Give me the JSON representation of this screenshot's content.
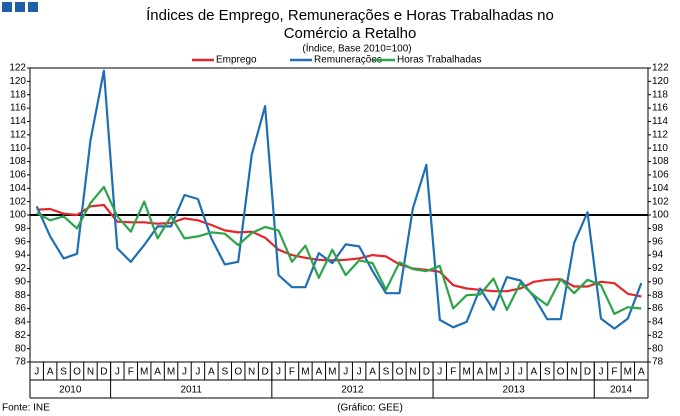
{
  "chart_data": {
    "type": "line",
    "title": [
      "Índices de Emprego, Remunerações e Horas Trabalhadas no",
      "Comércio a Retalho"
    ],
    "subtitle": "(Índice, Base 2010=100)",
    "source": "Fonte: INE",
    "credit": "(Gráfico: GEE)",
    "categories": [
      "J",
      "A",
      "S",
      "O",
      "N",
      "D",
      "J",
      "F",
      "M",
      "A",
      "M",
      "J",
      "J",
      "A",
      "S",
      "O",
      "N",
      "D",
      "J",
      "F",
      "M",
      "A",
      "M",
      "J",
      "J",
      "A",
      "S",
      "O",
      "N",
      "D",
      "J",
      "F",
      "M",
      "A",
      "M",
      "J",
      "J",
      "A",
      "S",
      "O",
      "N",
      "D",
      "J",
      "F",
      "M",
      "A"
    ],
    "groups": [
      {
        "label": "2010",
        "size": 6
      },
      {
        "label": "2011",
        "size": 12
      },
      {
        "label": "2012",
        "size": 12
      },
      {
        "label": "2013",
        "size": 12
      },
      {
        "label": "2014",
        "size": 4
      }
    ],
    "series": [
      {
        "name": "Emprego",
        "color": "#e3262b",
        "values": [
          100.8,
          100.9,
          100.2,
          100.0,
          101.3,
          101.5,
          99.0,
          98.9,
          98.9,
          98.7,
          98.8,
          99.5,
          99.2,
          98.5,
          97.7,
          97.4,
          97.5,
          96.6,
          94.8,
          94.0,
          93.6,
          93.3,
          93.2,
          93.3,
          93.5,
          94.0,
          93.8,
          92.6,
          92.0,
          91.8,
          91.5,
          89.5,
          89.0,
          88.8,
          88.6,
          88.6,
          89.0,
          90.0,
          90.3,
          90.4,
          89.3,
          89.3,
          90.0,
          89.8,
          88.2,
          87.8
        ]
      },
      {
        "name": "Remunerações",
        "color": "#1f6fb4",
        "values": [
          101.3,
          96.8,
          93.5,
          94.2,
          111.2,
          121.6,
          95.0,
          93.0,
          95.5,
          98.3,
          98.3,
          103.0,
          102.4,
          96.5,
          92.6,
          93.0,
          109.0,
          116.3,
          91.0,
          89.2,
          89.2,
          94.3,
          92.8,
          95.6,
          95.3,
          91.6,
          88.3,
          88.3,
          101.0,
          107.5,
          84.3,
          83.2,
          84.0,
          89.0,
          85.8,
          90.7,
          90.2,
          87.8,
          84.4,
          84.4,
          95.8,
          100.4,
          84.5,
          83.0,
          84.5,
          89.8
        ]
      },
      {
        "name": "Horas Trabalhadas",
        "color": "#2ca44a",
        "values": [
          100.3,
          99.2,
          99.8,
          98.0,
          101.8,
          104.2,
          99.8,
          97.5,
          102.0,
          96.5,
          99.8,
          96.5,
          96.8,
          97.4,
          97.2,
          95.5,
          97.3,
          98.2,
          97.7,
          93.0,
          95.4,
          90.6,
          94.8,
          91.0,
          93.2,
          92.8,
          88.8,
          92.9,
          91.9,
          91.6,
          92.4,
          86.0,
          88.0,
          88.1,
          90.5,
          85.8,
          89.8,
          88.0,
          86.5,
          90.4,
          88.3,
          90.3,
          89.5,
          85.2,
          86.2,
          86.0
        ]
      }
    ],
    "reference_line": 100,
    "ylim": [
      78,
      122
    ],
    "yticks": [
      78,
      80,
      82,
      84,
      86,
      88,
      90,
      92,
      94,
      96,
      98,
      100,
      102,
      104,
      106,
      108,
      110,
      112,
      114,
      116,
      118,
      120,
      122
    ],
    "y2lim": [
      78,
      122
    ],
    "y2ticks": [
      78,
      80,
      82,
      84,
      86,
      88,
      90,
      92,
      94,
      96,
      98,
      100,
      102,
      104,
      106,
      108,
      110,
      112,
      114,
      116,
      118,
      120,
      122
    ],
    "grid": false,
    "legend": "top"
  }
}
